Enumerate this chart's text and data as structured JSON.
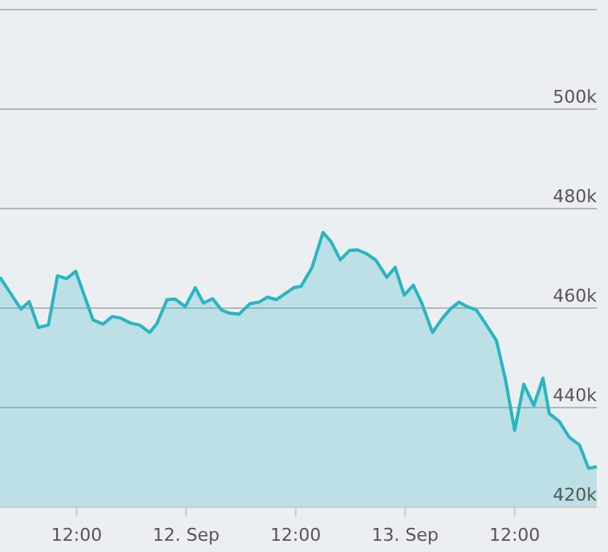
{
  "chart_data": {
    "type": "area",
    "x": [
      "--09-11T03:36",
      "--09-11T05:54",
      "--09-11T06:48",
      "--09-11T07:48",
      "--09-11T08:54",
      "--09-11T09:54",
      "--09-11T10:54",
      "--09-11T11:54",
      "--09-11T13:48",
      "--09-11T14:54",
      "--09-11T15:54",
      "--09-11T16:48",
      "--09-11T17:54",
      "--09-11T18:54",
      "--09-11T20:00",
      "--09-11T20:48",
      "--09-11T21:54",
      "--09-11T22:48",
      "--09-11T23:54",
      "--09-12T01:00",
      "--09-12T01:54",
      "--09-12T02:54",
      "--09-12T03:54",
      "--09-12T04:42",
      "--09-12T05:48",
      "--09-12T07:00",
      "--09-12T08:00",
      "--09-12T08:54",
      "--09-12T09:54",
      "--09-12T11:48",
      "--09-12T12:36",
      "--09-12T13:48",
      "--09-12T15:00",
      "--09-12T15:54",
      "--09-12T16:54",
      "--09-12T17:54",
      "--09-12T18:48",
      "--09-12T19:48",
      "--09-12T20:48",
      "--09-12T22:00",
      "--09-12T22:54",
      "--09-12T23:54",
      "--09-13T00:54",
      "--09-13T01:48",
      "--09-13T03:00",
      "--09-13T04:06",
      "--09-13T05:00",
      "--09-13T05:54",
      "--09-13T06:48",
      "--09-13T07:48",
      "--09-13T08:48",
      "--09-13T10:00",
      "--09-13T11:00",
      "--09-13T12:00",
      "--09-13T13:00",
      "--09-13T14:06",
      "--09-13T15:06",
      "--09-13T15:48",
      "--09-13T16:54",
      "--09-13T18:00",
      "--09-13T19:06",
      "--09-13T20:06",
      "--09-13T21:00"
    ],
    "series": [
      {
        "color": "#2ab5c2",
        "values": [
          466200,
          459800,
          461300,
          456100,
          456600,
          466500,
          465900,
          467400,
          457600,
          456800,
          458300,
          458000,
          457000,
          456600,
          455100,
          456900,
          461700,
          461800,
          460300,
          464100,
          461000,
          461900,
          459600,
          459000,
          458800,
          460900,
          461200,
          462200,
          461700,
          464100,
          464400,
          468200,
          475200,
          473300,
          469700,
          471600,
          471700,
          470900,
          469600,
          466200,
          468200,
          462600,
          464600,
          461100,
          455100,
          458000,
          459900,
          461200,
          460300,
          459600,
          456900,
          453500,
          445600,
          435400,
          444700,
          440400,
          445900,
          438800,
          437200,
          434000,
          432500,
          427800,
          428100
        ]
      }
    ],
    "xlim": [
      "--09-11T03:36",
      "--09-13T21:00"
    ],
    "xticks": [
      {
        "value": "--09-11T12:00",
        "label": "12:00"
      },
      {
        "value": "--09-12T00:00",
        "label": "12. Sep"
      },
      {
        "value": "--09-12T12:00",
        "label": "12:00"
      },
      {
        "value": "--09-13T00:00",
        "label": "13. Sep"
      },
      {
        "value": "--09-13T12:00",
        "label": "12:00"
      }
    ],
    "ylim": [
      420000,
      520000
    ],
    "yticks": [
      {
        "value": 420000,
        "label": "420k"
      },
      {
        "value": 440000,
        "label": "440k"
      },
      {
        "value": 460000,
        "label": "460k"
      },
      {
        "value": 480000,
        "label": "480k"
      },
      {
        "value": 500000,
        "label": "500k"
      },
      {
        "value": 520000,
        "label": null
      }
    ],
    "grid": "y"
  }
}
